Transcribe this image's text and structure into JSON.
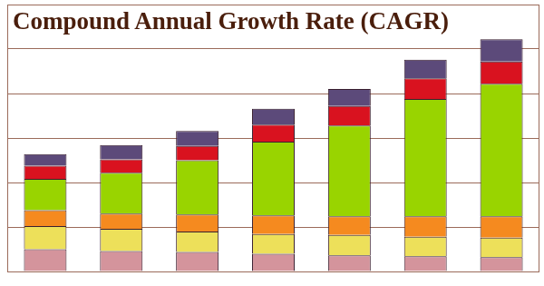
{
  "chart_data": {
    "type": "bar",
    "title": "Compound Annual Growth Rate (CAGR)",
    "categories": [
      null,
      null,
      null,
      null,
      null,
      null,
      null
    ],
    "stacked": true,
    "grid": true,
    "tick_labels": false,
    "ylim": [
      0,
      6
    ],
    "yticks": [
      0,
      1,
      2,
      3,
      4,
      5,
      6
    ],
    "series": [
      {
        "color": "#d4949c",
        "values": [
          0.5,
          0.46,
          0.44,
          0.4,
          0.36,
          0.34,
          0.32
        ]
      },
      {
        "color": "#ede05a",
        "values": [
          0.52,
          0.5,
          0.46,
          0.44,
          0.46,
          0.44,
          0.44
        ]
      },
      {
        "color": "#f58a1f",
        "values": [
          0.36,
          0.34,
          0.38,
          0.42,
          0.42,
          0.46,
          0.48
        ]
      },
      {
        "color": "#99d400",
        "values": [
          0.7,
          0.92,
          1.22,
          1.66,
          2.04,
          2.64,
          2.98
        ]
      },
      {
        "color": "#d9121f",
        "values": [
          0.3,
          0.3,
          0.32,
          0.38,
          0.44,
          0.46,
          0.5
        ]
      },
      {
        "color": "#5c4a7a",
        "values": [
          0.26,
          0.32,
          0.34,
          0.36,
          0.38,
          0.42,
          0.5
        ]
      }
    ]
  }
}
